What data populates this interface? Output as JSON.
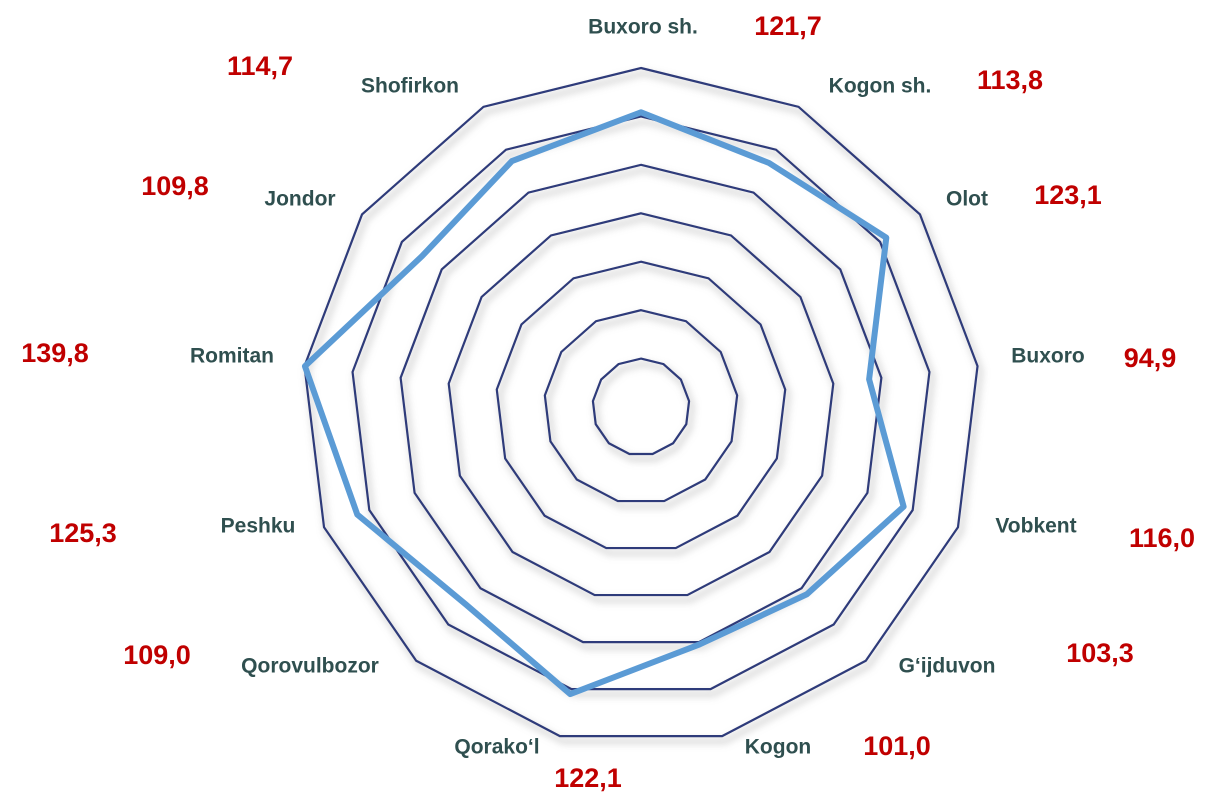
{
  "chart_data": {
    "type": "radar",
    "categories": [
      "Buxoro sh.",
      "Kogon sh.",
      "Olot",
      "Buxoro",
      "Vobkent",
      "G‘ijduvon",
      "Kogon",
      "Qorako‘l",
      "Qorovulbozor",
      "Peshku",
      "Romitan",
      "Jondor",
      "Shofirkon"
    ],
    "values": [
      121.7,
      113.8,
      123.1,
      94.9,
      116.0,
      103.3,
      101.0,
      122.1,
      109.0,
      125.3,
      139.8,
      109.8,
      114.7
    ],
    "value_labels": [
      "121,7",
      "113,8",
      "123,1",
      "94,9",
      "116,0",
      "103,3",
      "101,0",
      "122,1",
      "109,0",
      "125,3",
      "139,8",
      "109,8",
      "114,7"
    ],
    "color": "#5b9bd5",
    "grid_color": "#2e3b7a",
    "ylim": [
      0,
      140
    ],
    "yticks": [
      20,
      40,
      60,
      80,
      100,
      120,
      140
    ]
  }
}
